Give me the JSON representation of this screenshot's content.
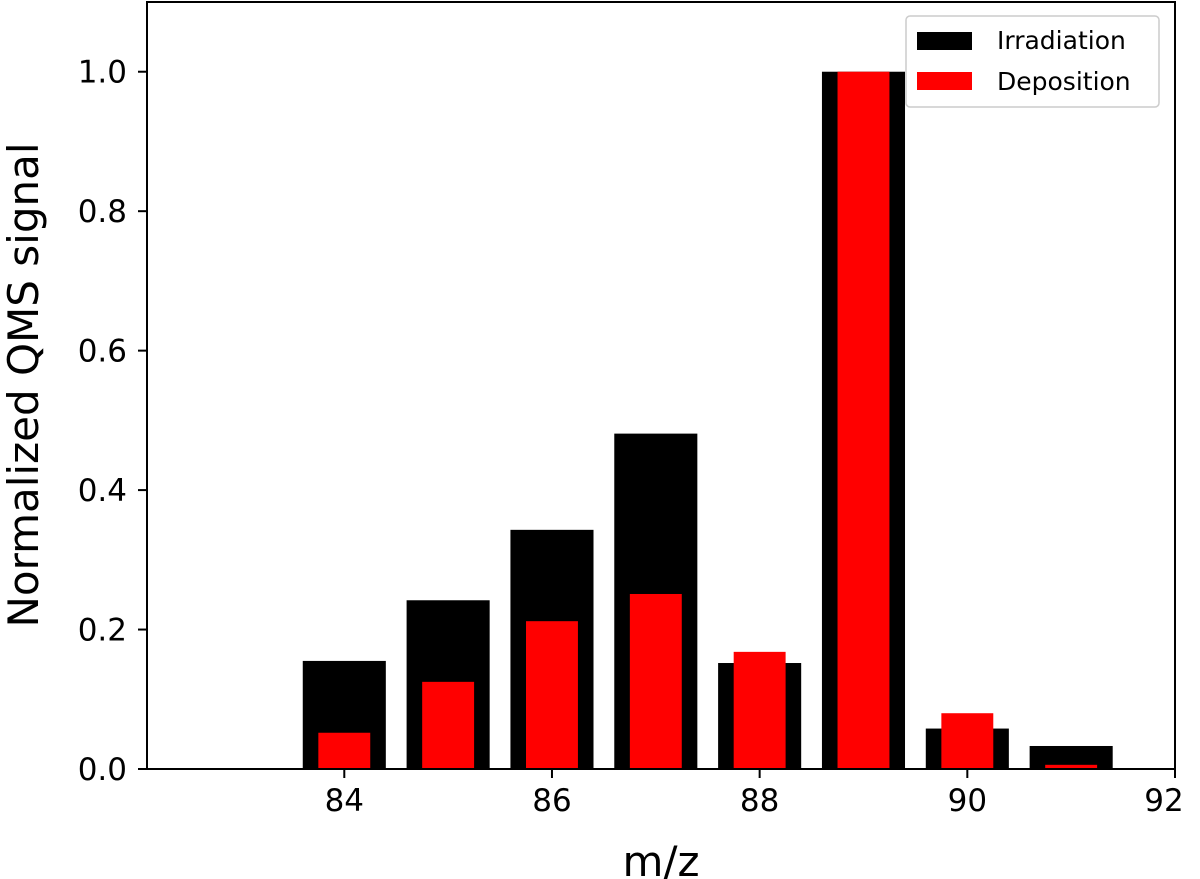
{
  "chart_data": {
    "type": "bar",
    "title": "",
    "xlabel": "m/z",
    "ylabel": "Normalized QMS signal",
    "x": [
      84,
      85,
      86,
      87,
      88,
      89,
      90,
      91
    ],
    "xlim": [
      82.1,
      92
    ],
    "ylim": [
      0,
      1.1
    ],
    "xticks": [
      84,
      86,
      88,
      90,
      92
    ],
    "yticks": [
      "0.0",
      "0.2",
      "0.4",
      "0.6",
      "0.8",
      "1.0"
    ],
    "grid": false,
    "legend_position": "top-right",
    "series": [
      {
        "name": "Irradiation",
        "color": "#000000",
        "bar_width": 0.8,
        "values": [
          0.155,
          0.242,
          0.343,
          0.481,
          0.152,
          1.0,
          0.058,
          0.033
        ]
      },
      {
        "name": "Deposition",
        "color": "#ff0000",
        "bar_width": 0.5,
        "values": [
          0.052,
          0.125,
          0.212,
          0.251,
          0.168,
          1.0,
          0.08,
          0.006
        ]
      }
    ]
  }
}
